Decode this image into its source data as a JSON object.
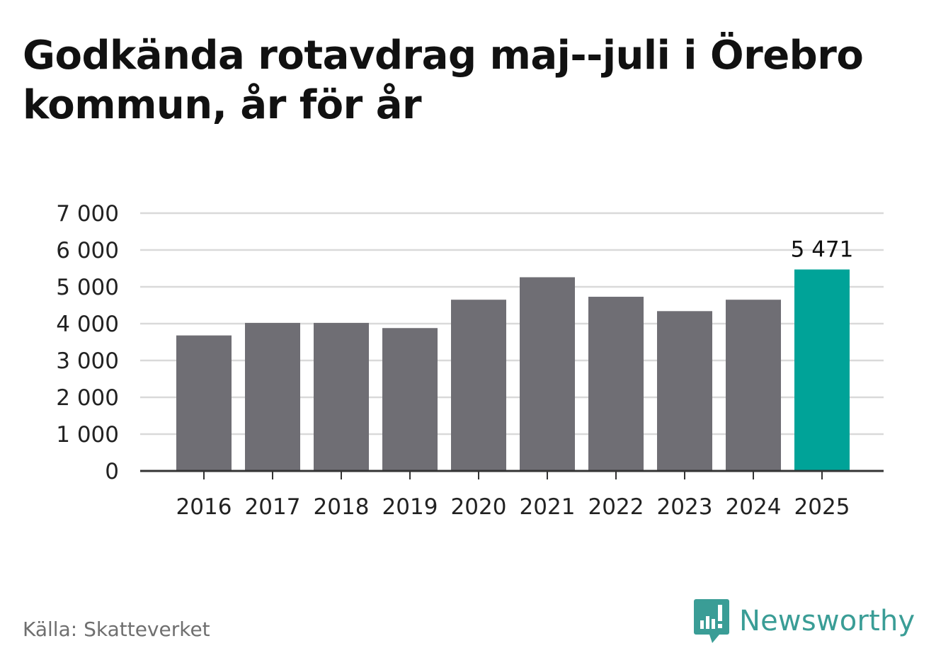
{
  "header": {
    "title": "Godkända rotavdrag maj--juli i Örebro kommun, år för år"
  },
  "footer": {
    "source": "Källa: Skatteverket",
    "brand": "Newsworthy",
    "brand_icon": "newsworthy-logo-icon"
  },
  "colors": {
    "bar": "#6f6e74",
    "highlight": "#00a398",
    "grid": "#d9d9d9",
    "axis": "#333333",
    "brand": "#3a9d96"
  },
  "chart_data": {
    "type": "bar",
    "categories": [
      "2016",
      "2017",
      "2018",
      "2019",
      "2020",
      "2021",
      "2022",
      "2023",
      "2024",
      "2025"
    ],
    "values": [
      3680,
      4020,
      4020,
      3880,
      4650,
      5260,
      4730,
      4340,
      4650,
      5471
    ],
    "highlight_category": "2025",
    "data_labels": [
      {
        "category": "2025",
        "text": "5 471"
      }
    ],
    "yticks": [
      0,
      1000,
      2000,
      3000,
      4000,
      5000,
      6000,
      7000
    ],
    "ytick_labels": [
      "0",
      "1 000",
      "2 000",
      "3 000",
      "4 000",
      "5 000",
      "6 000",
      "7 000"
    ],
    "ylim": [
      0,
      7000
    ],
    "grid": true,
    "legend": "none",
    "xlabel": "",
    "ylabel": ""
  }
}
